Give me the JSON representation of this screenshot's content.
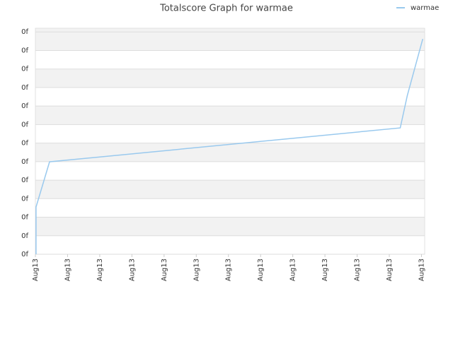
{
  "chart_data": {
    "type": "line",
    "title": "Totalscore Graph for warmae",
    "x": [
      0.02,
      0.02,
      0.44,
      11.34,
      11.56,
      12.04
    ],
    "series": [
      {
        "name": "warmae",
        "color": "#99c9ee",
        "values": [
          0,
          2.55,
          4.99,
          6.82,
          8.57,
          11.62
        ]
      }
    ],
    "xlim": [
      0,
      12.1
    ],
    "xticks": [
      {
        "value": 0,
        "label": "Aug13"
      },
      {
        "value": 1,
        "label": "Aug13"
      },
      {
        "value": 2,
        "label": "Aug13"
      },
      {
        "value": 3,
        "label": "Aug13"
      },
      {
        "value": 4,
        "label": "Aug13"
      },
      {
        "value": 5,
        "label": "Aug13"
      },
      {
        "value": 6,
        "label": "Aug13"
      },
      {
        "value": 7,
        "label": "Aug13"
      },
      {
        "value": 8,
        "label": "Aug13"
      },
      {
        "value": 9,
        "label": "Aug13"
      },
      {
        "value": 10,
        "label": "Aug13"
      },
      {
        "value": 11,
        "label": "Aug13"
      },
      {
        "value": 12,
        "label": "Aug13"
      }
    ],
    "ylim": [
      0,
      12.2
    ],
    "yticks": [
      {
        "value": 0,
        "label": "0f"
      },
      {
        "value": 1,
        "label": "0f"
      },
      {
        "value": 2,
        "label": "0f"
      },
      {
        "value": 3,
        "label": "0f"
      },
      {
        "value": 4,
        "label": "0f"
      },
      {
        "value": 5,
        "label": "0f"
      },
      {
        "value": 6,
        "label": "0f"
      },
      {
        "value": 7,
        "label": "0f"
      },
      {
        "value": 8,
        "label": "0f"
      },
      {
        "value": 9,
        "label": "0f"
      },
      {
        "value": 10,
        "label": "0f"
      },
      {
        "value": 11,
        "label": "0f"
      },
      {
        "value": 12,
        "label": "0f"
      }
    ],
    "grid": true,
    "legend": "top-right"
  }
}
